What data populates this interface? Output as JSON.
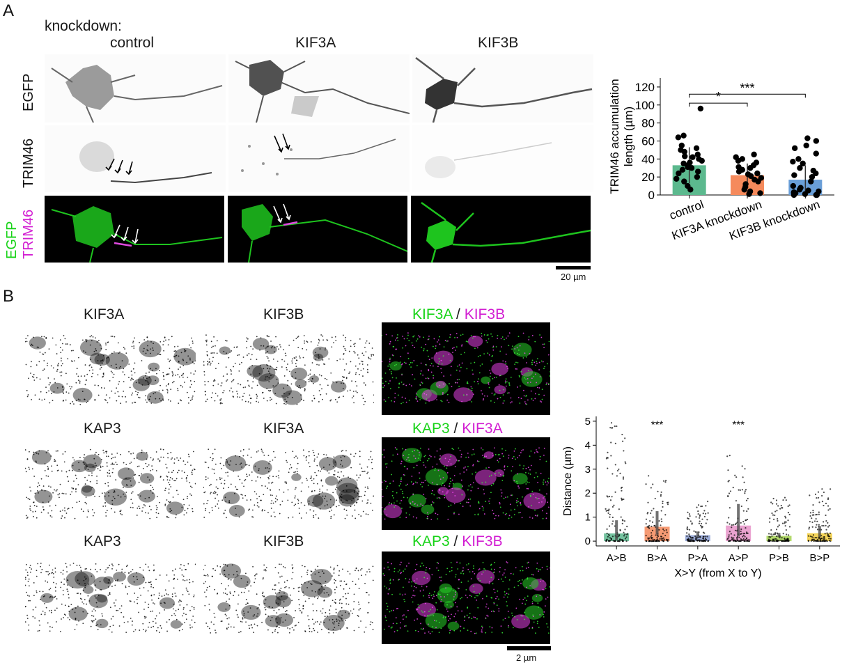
{
  "panel_a": {
    "letter": "A",
    "condition_label": "knockdown:",
    "columns": [
      "control",
      "KIF3A",
      "KIF3B"
    ],
    "rows": [
      "EGFP",
      "TRIM46"
    ],
    "merge_label_top": "TRIM46",
    "merge_label_bottom": "EGFP",
    "scalebar": "20 µm",
    "colors": {
      "egfp": "#1ec41e",
      "trim46": "#e04ae0"
    }
  },
  "panel_b": {
    "letter": "B",
    "row1": {
      "left": "KIF3A",
      "mid": "KIF3B",
      "merge_a": "KIF3A",
      "sep": " / ",
      "merge_b": "KIF3B"
    },
    "row2": {
      "left": "KAP3",
      "mid": "KIF3A",
      "merge_a": "KAP3",
      "sep": " / ",
      "merge_b": "KIF3A"
    },
    "row3": {
      "left": "KAP3",
      "mid": "KIF3B",
      "merge_a": "KAP3",
      "sep": " / ",
      "merge_b": "KIF3B"
    },
    "scalebar": "2 µm"
  },
  "chart_data": [
    {
      "type": "bar",
      "categories": [
        "control",
        "KIF3A knockdown",
        "KIF3B knockdown"
      ],
      "values": [
        33,
        22,
        17
      ],
      "errors": [
        20,
        13,
        16
      ],
      "colors": [
        "#5cb98e",
        "#f58a5c",
        "#6a9fd8"
      ],
      "title": "",
      "xlabel": "",
      "ylabel": "TRIM46 accumulation length (µm)",
      "ylabel_line1": "TRIM46 accumulation",
      "ylabel_line2": "length (µm)",
      "ylim": [
        0,
        130
      ],
      "yticks": [
        0,
        20,
        40,
        60,
        80,
        100,
        120
      ],
      "points": [
        [
          96,
          66,
          64,
          55,
          52,
          50,
          48,
          45,
          43,
          42,
          40,
          38,
          36,
          35,
          33,
          31,
          30,
          28,
          26,
          24,
          20,
          18,
          15,
          10,
          6
        ],
        [
          45,
          42,
          40,
          38,
          36,
          33,
          31,
          30,
          28,
          26,
          24,
          23,
          21,
          19,
          17,
          15,
          12,
          9,
          6,
          4,
          2,
          1
        ],
        [
          63,
          60,
          55,
          52,
          46,
          40,
          37,
          35,
          30,
          27,
          24,
          22,
          20,
          15,
          10,
          8,
          6,
          5,
          4,
          3,
          2,
          2,
          1,
          1,
          0,
          0,
          0
        ]
      ],
      "significance": [
        {
          "from": 0,
          "to": 1,
          "label": "*"
        },
        {
          "from": 0,
          "to": 2,
          "label": "***"
        }
      ]
    },
    {
      "type": "bar",
      "categories": [
        "A>B",
        "B>A",
        "P>A",
        "A>P",
        "P>B",
        "B>P"
      ],
      "values": [
        0.32,
        0.6,
        0.25,
        0.65,
        0.22,
        0.33
      ],
      "errors": [
        0.55,
        0.65,
        0.15,
        0.9,
        0.12,
        0.3
      ],
      "colors": [
        "#5cb98e",
        "#f58a5c",
        "#8c9fd2",
        "#e693c8",
        "#a5d251",
        "#f2cc3c"
      ],
      "title": "",
      "xlabel": "X>Y (from X to Y)",
      "ylabel": "Distance (µm)",
      "ylim": [
        -0.2,
        5.2
      ],
      "yticks": [
        0,
        1,
        2,
        3,
        4,
        5
      ],
      "significance_labels": [
        "",
        "***",
        "",
        "***",
        "",
        ""
      ],
      "spread_max": [
        5.05,
        2.8,
        1.7,
        3.8,
        1.9,
        2.2
      ]
    }
  ]
}
